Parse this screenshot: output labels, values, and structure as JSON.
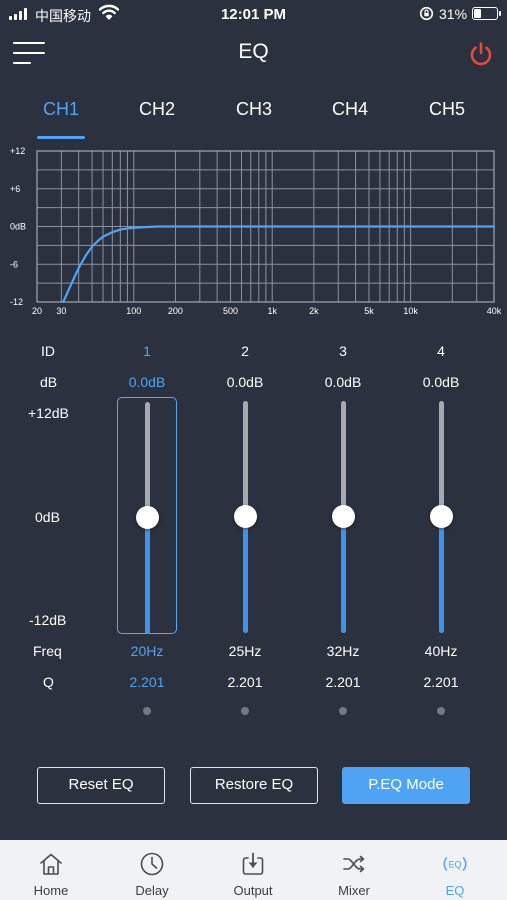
{
  "status_bar": {
    "carrier": "中国移动",
    "time": "12:01 PM",
    "battery_percent": "31%",
    "battery_level": 0.31,
    "icons": [
      "signal-icon",
      "wifi-icon",
      "rotation-lock-icon",
      "battery-icon"
    ]
  },
  "header": {
    "title": "EQ",
    "menu_icon": "hamburger-menu-icon",
    "power_icon": "power-icon",
    "power_color": "#e34b39"
  },
  "tabs": [
    {
      "label": "CH1",
      "active": true
    },
    {
      "label": "CH2",
      "active": false
    },
    {
      "label": "CH3",
      "active": false
    },
    {
      "label": "CH4",
      "active": false
    },
    {
      "label": "CH5",
      "active": false
    }
  ],
  "chart_data": {
    "type": "line",
    "title": "",
    "xlabel": "",
    "ylabel": "",
    "x_scale": "log",
    "xlim": [
      20,
      40000
    ],
    "ylim": [
      -12,
      12
    ],
    "y_ticks": [
      "+12",
      "+6",
      "0dB",
      "-6",
      "-12"
    ],
    "x_ticks": [
      "20",
      "30",
      "100",
      "200",
      "500",
      "1k",
      "2k",
      "5k",
      "10k",
      "40k"
    ],
    "grid": true,
    "line_color": "#4ea4f2",
    "series": [
      {
        "x": [
          31,
          35,
          40,
          45,
          50,
          55,
          60,
          70,
          80,
          90,
          100,
          120,
          150,
          200,
          500,
          1000,
          5000,
          40000
        ],
        "y": [
          -12,
          -9.4,
          -6.6,
          -4.6,
          -3.2,
          -2.3,
          -1.6,
          -0.9,
          -0.5,
          -0.3,
          -0.2,
          -0.1,
          0,
          0,
          0,
          0,
          0,
          0
        ]
      }
    ],
    "accent": "#4ea4f2"
  },
  "params": {
    "labels": {
      "id": "ID",
      "db": "dB",
      "max": "+12dB",
      "mid": "0dB",
      "min": "-12dB",
      "freq": "Freq",
      "q": "Q"
    },
    "bands": [
      {
        "id": "1",
        "db": "0.0dB",
        "gain": 0.0,
        "freq": "20Hz",
        "q": "2.201",
        "selected": true
      },
      {
        "id": "2",
        "db": "0.0dB",
        "gain": 0.0,
        "freq": "25Hz",
        "q": "2.201",
        "selected": false
      },
      {
        "id": "3",
        "db": "0.0dB",
        "gain": 0.0,
        "freq": "32Hz",
        "q": "2.201",
        "selected": false
      },
      {
        "id": "4",
        "db": "0.0dB",
        "gain": 0.0,
        "freq": "40Hz",
        "q": "2.201",
        "selected": false
      }
    ],
    "gain_range": [
      -12,
      12
    ]
  },
  "buttons": {
    "reset": "Reset EQ",
    "restore": "Restore EQ",
    "peq_mode": "P.EQ Mode"
  },
  "nav": {
    "items": [
      {
        "label": "Home",
        "icon": "home-icon",
        "active": false
      },
      {
        "label": "Delay",
        "icon": "clock-icon",
        "active": false
      },
      {
        "label": "Output",
        "icon": "output-icon",
        "active": false
      },
      {
        "label": "Mixer",
        "icon": "shuffle-icon",
        "active": false
      },
      {
        "label": "EQ",
        "icon": "eq-icon",
        "active": true
      }
    ],
    "eq_icon_text": "(EQ)"
  },
  "colors": {
    "background": "#2c3140",
    "accent": "#4ea4f2",
    "nav_background": "#f1f2f4"
  }
}
